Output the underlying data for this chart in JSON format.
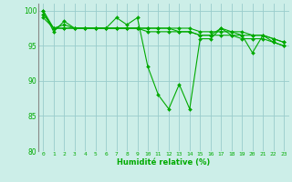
{
  "title": "",
  "xlabel": "Humidité relative (%)",
  "ylabel": "",
  "bg_color": "#cceee8",
  "grid_color": "#99cccc",
  "line_color": "#00aa00",
  "marker_color": "#00aa00",
  "xlim": [
    -0.5,
    23.5
  ],
  "ylim": [
    80,
    101
  ],
  "yticks": [
    80,
    85,
    90,
    95,
    100
  ],
  "xticks": [
    0,
    1,
    2,
    3,
    4,
    5,
    6,
    7,
    8,
    9,
    10,
    11,
    12,
    13,
    14,
    15,
    16,
    17,
    18,
    19,
    20,
    21,
    22,
    23
  ],
  "series": [
    [
      100,
      97,
      98.5,
      97.5,
      97.5,
      97.5,
      97.5,
      99,
      98,
      99,
      92,
      88,
      86,
      89.5,
      86,
      96,
      96,
      97.5,
      96.5,
      96.5,
      94,
      96.5,
      95.5,
      95
    ],
    [
      99,
      97.5,
      98,
      97.5,
      97.5,
      97.5,
      97.5,
      97.5,
      97.5,
      97.5,
      97.5,
      97.5,
      97.5,
      97,
      97,
      96.5,
      96.5,
      97.5,
      97,
      96.5,
      96.5,
      96.5,
      96,
      95.5
    ],
    [
      99.5,
      97.5,
      97.5,
      97.5,
      97.5,
      97.5,
      97.5,
      97.5,
      97.5,
      97.5,
      97.5,
      97.5,
      97.5,
      97.5,
      97.5,
      97,
      97,
      97,
      97,
      97,
      96.5,
      96.5,
      96,
      95.5
    ],
    [
      100,
      97.5,
      97.5,
      97.5,
      97.5,
      97.5,
      97.5,
      97.5,
      97.5,
      97.5,
      97,
      97,
      97,
      97,
      97,
      96.5,
      96.5,
      96.5,
      96.5,
      96,
      96,
      96,
      95.5,
      95
    ]
  ]
}
